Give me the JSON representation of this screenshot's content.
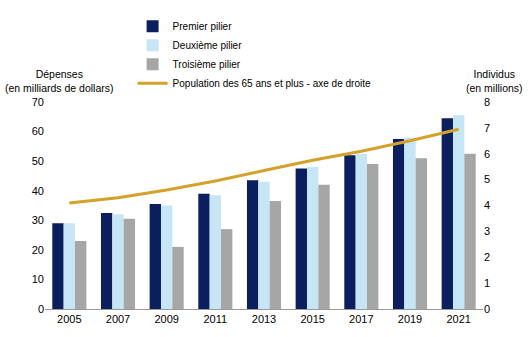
{
  "chart_data": {
    "type": "bar",
    "ylabel": "Dépenses\n(en milliards de dollars)",
    "y2label": "Individus\n(en millions)",
    "categories": [
      "2005",
      "2007",
      "2009",
      "2011",
      "2013",
      "2015",
      "2017",
      "2019",
      "2021"
    ],
    "series": [
      {
        "name": "Premier pilier",
        "type": "bar",
        "color": "#0b1f5e",
        "values": [
          29,
          32.5,
          35.5,
          39,
          43.5,
          47.5,
          52,
          57.5,
          64.5
        ]
      },
      {
        "name": "Deuxième pilier",
        "type": "bar",
        "color": "#c6e6f5",
        "values": [
          29,
          32,
          35,
          38.5,
          43,
          48,
          52.5,
          58,
          65.5
        ]
      },
      {
        "name": "Troisième pilier",
        "type": "bar",
        "color": "#a6a6a6",
        "values": [
          23,
          30.5,
          21,
          27,
          36.5,
          42,
          49,
          51,
          52.5
        ]
      },
      {
        "name": "Population des 65 ans et plus - axe de droite",
        "type": "line",
        "color": "#d4a12a",
        "axis": "y2",
        "values": [
          4.1,
          4.3,
          4.6,
          4.95,
          5.35,
          5.75,
          6.1,
          6.5,
          6.95
        ]
      }
    ],
    "ylim": [
      0,
      70
    ],
    "yticks": [
      0,
      10,
      20,
      30,
      40,
      50,
      60,
      70
    ],
    "y2lim": [
      0,
      8
    ],
    "y2ticks": [
      0,
      1,
      2,
      3,
      4,
      5,
      6,
      7,
      8
    ],
    "grid": false,
    "legend": "upper left"
  }
}
